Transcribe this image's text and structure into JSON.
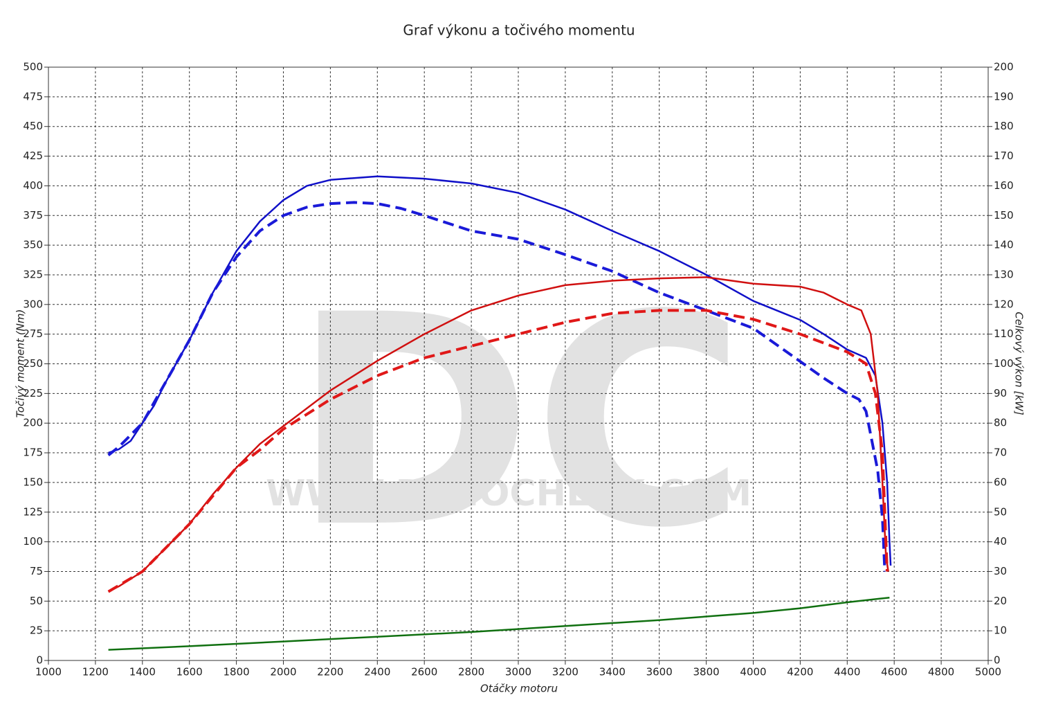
{
  "chart_data": {
    "type": "line",
    "title": "Graf výkonu a točivého momentu",
    "xlabel": "Otáčky motoru",
    "ylabel": "Točivý moment (Nm)",
    "y2label": "Celkový výkon [kW]",
    "watermark_logo": "DC",
    "watermark_text": "WWW.DYNOCHECK.COM",
    "xlim": [
      1000,
      5000
    ],
    "xticks": [
      1000,
      1200,
      1400,
      1600,
      1800,
      2000,
      2200,
      2400,
      2600,
      2800,
      3000,
      3200,
      3400,
      3600,
      3800,
      4000,
      4200,
      4400,
      4600,
      4800,
      5000
    ],
    "ylim": [
      0,
      500
    ],
    "yticks": [
      0,
      25,
      50,
      75,
      100,
      125,
      150,
      175,
      200,
      225,
      250,
      275,
      300,
      325,
      350,
      375,
      400,
      425,
      450,
      475,
      500
    ],
    "y2lim": [
      0,
      200
    ],
    "y2ticks": [
      0,
      10,
      20,
      30,
      40,
      50,
      60,
      70,
      80,
      90,
      100,
      110,
      120,
      130,
      140,
      150,
      160,
      170,
      180,
      190,
      200
    ],
    "grid": true,
    "series": [
      {
        "color": "#1010c8",
        "dashed": false,
        "axis": "y",
        "x": [
          1255,
          1300,
          1350,
          1400,
          1450,
          1500,
          1600,
          1700,
          1800,
          1900,
          2000,
          2100,
          2200,
          2400,
          2600,
          2800,
          3000,
          3200,
          3400,
          3600,
          3800,
          4000,
          4200,
          4300,
          4400,
          4480,
          4520,
          4550,
          4570,
          4580,
          4585
        ],
        "values": [
          175,
          178,
          185,
          200,
          215,
          235,
          270,
          310,
          345,
          370,
          388,
          400,
          405,
          408,
          406,
          402,
          394,
          380,
          362,
          345,
          325,
          303,
          287,
          275,
          262,
          255,
          240,
          200,
          150,
          100,
          80
        ]
      },
      {
        "color": "#1a1ad8",
        "dashed": true,
        "axis": "y",
        "x": [
          1255,
          1300,
          1400,
          1500,
          1600,
          1700,
          1800,
          1900,
          2000,
          2100,
          2200,
          2300,
          2400,
          2500,
          2600,
          2800,
          3000,
          3200,
          3400,
          3600,
          3800,
          4000,
          4200,
          4300,
          4400,
          4450,
          4480,
          4500,
          4530,
          4550,
          4560
        ],
        "values": [
          173,
          180,
          200,
          235,
          270,
          310,
          340,
          362,
          375,
          382,
          385,
          386,
          385,
          381,
          375,
          362,
          355,
          342,
          328,
          310,
          295,
          280,
          252,
          238,
          225,
          220,
          210,
          190,
          160,
          120,
          75
        ]
      },
      {
        "color": "#d01010",
        "dashed": false,
        "axis": "y2",
        "x": [
          1255,
          1300,
          1400,
          1500,
          1600,
          1700,
          1800,
          1900,
          2000,
          2100,
          2200,
          2400,
          2600,
          2800,
          3000,
          3200,
          3400,
          3600,
          3800,
          4000,
          4200,
          4300,
          4400,
          4460,
          4500,
          4530,
          4550,
          4565,
          4575
        ],
        "values": [
          23.2,
          25,
          30,
          38,
          46,
          56,
          65,
          73,
          79,
          85,
          91,
          101,
          110,
          118,
          123,
          126.5,
          128,
          128.8,
          129.2,
          127,
          126,
          124,
          120,
          118,
          110,
          90,
          60,
          35,
          30
        ]
      },
      {
        "color": "#e01818",
        "dashed": true,
        "axis": "y2",
        "x": [
          1255,
          1400,
          1600,
          1800,
          1900,
          2000,
          2200,
          2400,
          2600,
          2800,
          3000,
          3200,
          3400,
          3600,
          3800,
          4000,
          4200,
          4400,
          4480,
          4520,
          4550,
          4565,
          4570
        ],
        "values": [
          23.2,
          30,
          46,
          65,
          71,
          78,
          88,
          96,
          102,
          106,
          110,
          114,
          117,
          118,
          118,
          115,
          110,
          104,
          100,
          90,
          70,
          40,
          30
        ]
      },
      {
        "color": "#107010",
        "dashed": false,
        "axis": "y2",
        "x": [
          1255,
          1600,
          2000,
          2400,
          2800,
          3200,
          3600,
          4000,
          4200,
          4400,
          4580
        ],
        "values": [
          3.6,
          4.8,
          6.4,
          8,
          9.6,
          11.6,
          13.6,
          16,
          17.6,
          19.6,
          21.2
        ]
      }
    ]
  }
}
